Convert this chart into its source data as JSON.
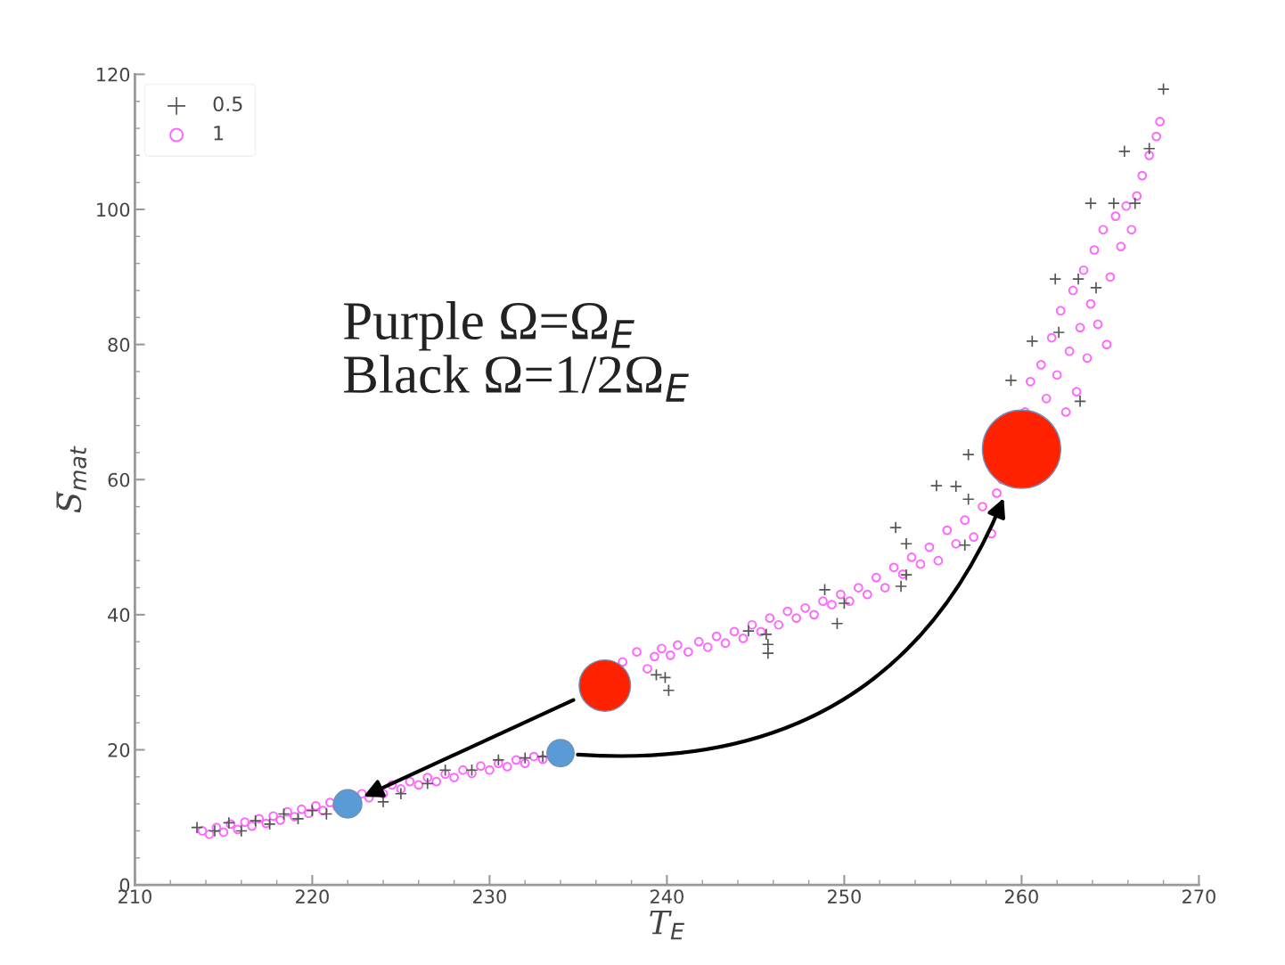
{
  "chart_data": {
    "type": "scatter",
    "xlabel": "T$_{E}$",
    "ylabel": "S̅$_{mat}$",
    "xlim": [
      210,
      270
    ],
    "ylim": [
      0,
      120
    ],
    "xticks": [
      210,
      {
        "value": 212,
        "label": null
      },
      {
        "value": 214,
        "label": null
      },
      {
        "value": 216,
        "label": null
      },
      {
        "value": 218,
        "label": null
      },
      220,
      {
        "value": 222,
        "label": null
      },
      {
        "value": 224,
        "label": null
      },
      {
        "value": 226,
        "label": null
      },
      {
        "value": 228,
        "label": null
      },
      230,
      {
        "value": 232,
        "label": null
      },
      {
        "value": 234,
        "label": null
      },
      {
        "value": 236,
        "label": null
      },
      {
        "value": 238,
        "label": null
      },
      240,
      {
        "value": 242,
        "label": null
      },
      {
        "value": 244,
        "label": null
      },
      {
        "value": 246,
        "label": null
      },
      {
        "value": 248,
        "label": null
      },
      250,
      {
        "value": 252,
        "label": null
      },
      {
        "value": 254,
        "label": null
      },
      {
        "value": 256,
        "label": null
      },
      {
        "value": 258,
        "label": null
      },
      260,
      {
        "value": 262,
        "label": null
      },
      {
        "value": 264,
        "label": null
      },
      {
        "value": 266,
        "label": null
      },
      {
        "value": 268,
        "label": null
      },
      270
    ],
    "yticks": [
      0,
      {
        "value": 4,
        "label": null
      },
      {
        "value": 8,
        "label": null
      },
      {
        "value": 12,
        "label": null
      },
      {
        "value": 16,
        "label": null
      },
      20,
      {
        "value": 24,
        "label": null
      },
      {
        "value": 28,
        "label": null
      },
      {
        "value": 32,
        "label": null
      },
      {
        "value": 36,
        "label": null
      },
      40,
      {
        "value": 44,
        "label": null
      },
      {
        "value": 48,
        "label": null
      },
      {
        "value": 52,
        "label": null
      },
      {
        "value": 56,
        "label": null
      },
      60,
      {
        "value": 64,
        "label": null
      },
      {
        "value": 68,
        "label": null
      },
      {
        "value": 72,
        "label": null
      },
      {
        "value": 76,
        "label": null
      },
      80,
      {
        "value": 84,
        "label": null
      },
      {
        "value": 88,
        "label": null
      },
      {
        "value": 92,
        "label": null
      },
      {
        "value": 96,
        "label": null
      },
      100,
      {
        "value": 104,
        "label": null
      },
      {
        "value": 108,
        "label": null
      },
      {
        "value": 112,
        "label": null
      },
      {
        "value": 116,
        "label": null
      },
      120
    ],
    "grid": false,
    "legend": "top left",
    "annotations": [
      "Purple Ω=Ω$_{E}$\nBlack Ω=1/2Ω$_{E}$"
    ],
    "series": [
      {
        "name": "0.5",
        "color": "#555555",
        "marker": "cross",
        "x": [
          213.5,
          214.5,
          215.3,
          216.0,
          216.8,
          217.6,
          218.4,
          219.2,
          220.0,
          220.8,
          224.0,
          225.0,
          226.5,
          227.5,
          229.0,
          230.5,
          232.0,
          233.0,
          239.4,
          239.9,
          240.1,
          244.6,
          245.6,
          245.7,
          245.7,
          248.9,
          250.0,
          249.6,
          252.9,
          253.5,
          253.5,
          253.2,
          256.8,
          255.2,
          256.3,
          257.0,
          257.0,
          259.4,
          260.6,
          261.9,
          262.1,
          263.2,
          264.2,
          263.3,
          263.9,
          265.2,
          266.4,
          265.8,
          267.2,
          268.0
        ],
        "values": [
          8.5,
          8.0,
          9.2,
          8.0,
          9.5,
          9.0,
          10.5,
          9.8,
          11.0,
          10.5,
          12.3,
          13.5,
          15.0,
          17.0,
          17.0,
          18.5,
          18.8,
          19.0,
          31.1,
          30.7,
          28.8,
          37.6,
          37.1,
          35.6,
          34.3,
          43.7,
          41.7,
          38.7,
          52.9,
          50.5,
          45.9,
          44.2,
          50.3,
          59.1,
          59.0,
          63.7,
          57.1,
          74.7,
          80.5,
          89.7,
          81.8,
          89.7,
          88.4,
          71.6,
          100.9,
          100.9,
          100.9,
          108.6,
          109.0,
          117.8
        ]
      },
      {
        "name": "1",
        "color": "#ff66ff",
        "marker": "circle",
        "x": [
          213.8,
          214.2,
          214.6,
          215.0,
          215.4,
          215.8,
          216.2,
          216.6,
          217.0,
          217.4,
          217.8,
          218.2,
          218.6,
          219.0,
          219.4,
          219.8,
          220.2,
          220.6,
          221.0,
          221.4,
          222.8,
          223.2,
          224.0,
          224.5,
          225.0,
          225.5,
          226.0,
          226.5,
          227.0,
          227.5,
          228.0,
          228.5,
          229.0,
          229.5,
          230.0,
          230.5,
          231.0,
          231.5,
          232.0,
          232.5,
          233.0,
          237.5,
          238.3,
          238.9,
          239.3,
          239.7,
          240.2,
          240.6,
          241.2,
          241.8,
          242.3,
          242.8,
          243.3,
          243.8,
          244.3,
          244.8,
          245.3,
          245.8,
          246.3,
          246.8,
          247.3,
          247.8,
          248.3,
          248.8,
          249.3,
          249.8,
          250.3,
          250.8,
          251.3,
          251.8,
          252.3,
          252.8,
          253.3,
          253.8,
          254.3,
          254.8,
          255.3,
          255.8,
          256.3,
          256.8,
          257.3,
          257.8,
          258.3,
          258.6,
          258.9,
          260.2,
          260.5,
          261.1,
          261.4,
          261.7,
          262.0,
          262.2,
          262.5,
          262.7,
          262.9,
          263.1,
          263.3,
          263.5,
          263.7,
          263.9,
          264.1,
          264.3,
          264.6,
          264.8,
          265.0,
          265.3,
          265.6,
          265.9,
          266.2,
          266.5,
          266.8,
          267.2,
          267.6,
          267.8
        ],
        "values": [
          8.0,
          7.5,
          8.5,
          7.8,
          9.0,
          8.2,
          9.3,
          8.7,
          9.8,
          9.1,
          10.2,
          9.6,
          10.8,
          10.1,
          11.2,
          10.6,
          11.7,
          11.0,
          12.2,
          11.6,
          13.5,
          12.9,
          13.5,
          14.8,
          14.2,
          15.3,
          14.8,
          15.9,
          15.3,
          16.4,
          15.9,
          17.0,
          16.5,
          17.6,
          17.0,
          18.0,
          17.5,
          18.5,
          18.0,
          19.0,
          18.6,
          33.0,
          34.5,
          32.0,
          33.8,
          35.0,
          34.0,
          35.5,
          34.5,
          36.0,
          35.2,
          36.8,
          35.8,
          37.5,
          36.5,
          38.5,
          37.5,
          39.5,
          38.5,
          40.5,
          39.5,
          41.0,
          40.0,
          42.0,
          41.5,
          43.0,
          42.0,
          44.0,
          43.0,
          45.5,
          44.0,
          47.0,
          46.0,
          48.5,
          47.5,
          50.0,
          48.0,
          52.5,
          50.5,
          54.0,
          51.5,
          56.0,
          52.0,
          58.0,
          60.0,
          70.0,
          74.5,
          77.0,
          72.0,
          81.0,
          75.5,
          85.0,
          70.0,
          79.0,
          88.0,
          73.0,
          82.5,
          91.0,
          78.0,
          86.0,
          94.0,
          83.0,
          97.0,
          80.0,
          90.0,
          99.0,
          94.5,
          100.5,
          97.0,
          102.0,
          105.0,
          108.0,
          110.8,
          113.0
        ]
      },
      {
        "type": "bubble",
        "color": "#ff2200",
        "x": [
          236.5,
          260.0
        ],
        "values": [
          29.5,
          64.5
        ],
        "sizes": [
          0.43,
          1
        ]
      },
      {
        "type": "bubble",
        "color": "#5b9bd5",
        "x": [
          222.0,
          234.0
        ],
        "values": [
          12.0,
          19.5
        ],
        "sizes": [
          0.13,
          0.12
        ]
      }
    ]
  }
}
